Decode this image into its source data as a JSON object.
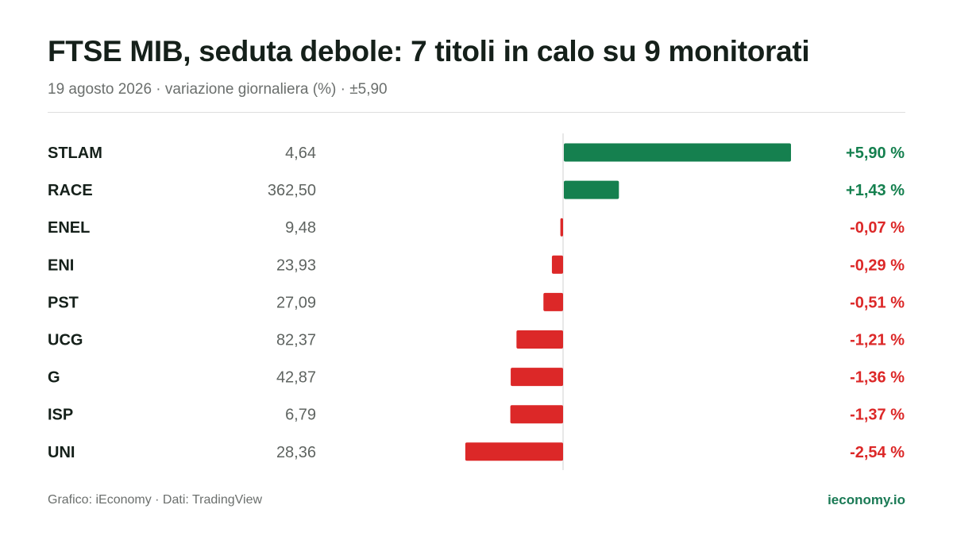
{
  "header": {
    "title": "FTSE MIB, seduta debole: 7 titoli in calo su 9 monitorati",
    "subtitle": "19 agosto 2026 · variazione giornaliera (%) · ±5,90"
  },
  "footer": {
    "source": "Grafico: iEconomy · Dati: TradingView",
    "brand": "ieconomy.io"
  },
  "colors": {
    "positive": "#15804f",
    "negative": "#dc2828",
    "axis": "#d0d0d0"
  },
  "chart_data": {
    "type": "bar",
    "orientation": "horizontal",
    "xlim": [
      -5.9,
      5.9
    ],
    "categories": [
      "STLAM",
      "RACE",
      "ENEL",
      "ENI",
      "PST",
      "UCG",
      "G",
      "ISP",
      "UNI"
    ],
    "prices": [
      "4,64",
      "362,50",
      "9,48",
      "23,93",
      "27,09",
      "82,37",
      "42,87",
      "6,79",
      "28,36"
    ],
    "values": [
      5.9,
      1.43,
      -0.07,
      -0.29,
      -0.51,
      -1.21,
      -1.36,
      -1.37,
      -2.54
    ],
    "value_labels": [
      "+5,90 %",
      "+1,43 %",
      "-0,07 %",
      "-0,29 %",
      "-0,51 %",
      "-1,21 %",
      "-1,36 %",
      "-1,37 %",
      "-2,54 %"
    ]
  }
}
